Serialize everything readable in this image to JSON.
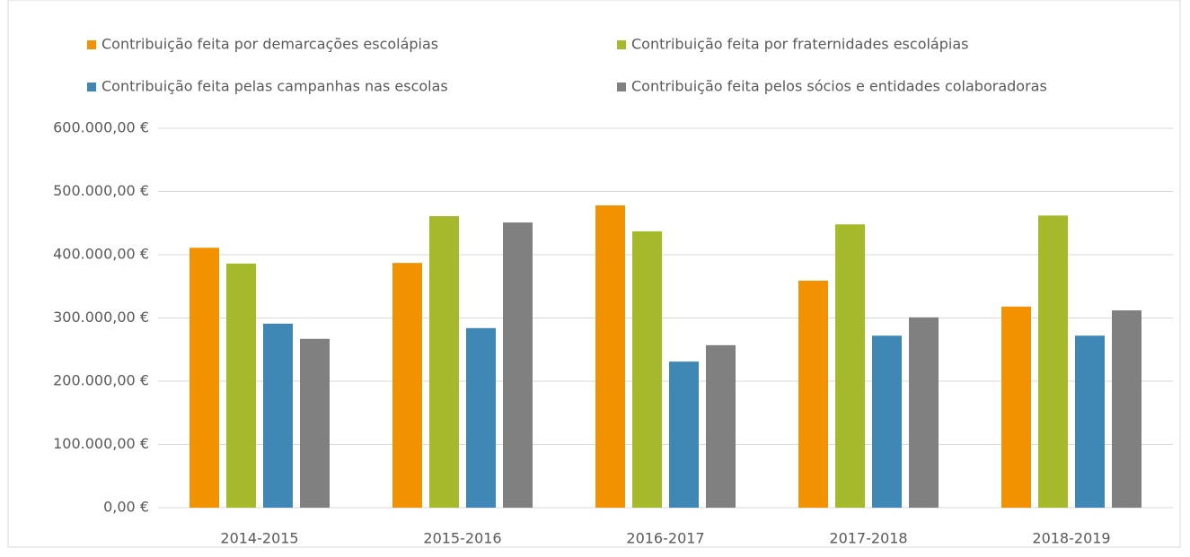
{
  "chart_data": {
    "type": "bar",
    "categories": [
      "2014-2015",
      "2015-2016",
      "2016-2017",
      "2017-2018",
      "2018-2019"
    ],
    "series": [
      {
        "name": "Contribuição feita por demarcações escolápias",
        "color": "#f39200",
        "values": [
          411000,
          387000,
          478000,
          359000,
          318000
        ]
      },
      {
        "name": "Contribuição feita por fraternidades escolápias",
        "color": "#a6b92b",
        "values": [
          386000,
          461000,
          437000,
          448000,
          462000
        ]
      },
      {
        "name": "Contribuição feita pelas campanhas nas escolas",
        "color": "#3f88b6",
        "values": [
          291000,
          284000,
          231000,
          272000,
          272000
        ]
      },
      {
        "name": "Contribuição feita pelos sócios e entidades colaboradoras",
        "color": "#808080",
        "values": [
          267000,
          451000,
          257000,
          301000,
          312000
        ]
      }
    ],
    "ylim": [
      0,
      600000
    ],
    "yticks": [
      {
        "value": 0,
        "label": "0,00 €"
      },
      {
        "value": 100000,
        "label": "100.000,00 €"
      },
      {
        "value": 200000,
        "label": "200.000,00 €"
      },
      {
        "value": 300000,
        "label": "300.000,00 €"
      },
      {
        "value": 400000,
        "label": "400.000,00 €"
      },
      {
        "value": 500000,
        "label": "500.000,00 €"
      },
      {
        "value": 600000,
        "label": "600.000,00 €"
      }
    ],
    "grid": true,
    "legend": "top"
  }
}
